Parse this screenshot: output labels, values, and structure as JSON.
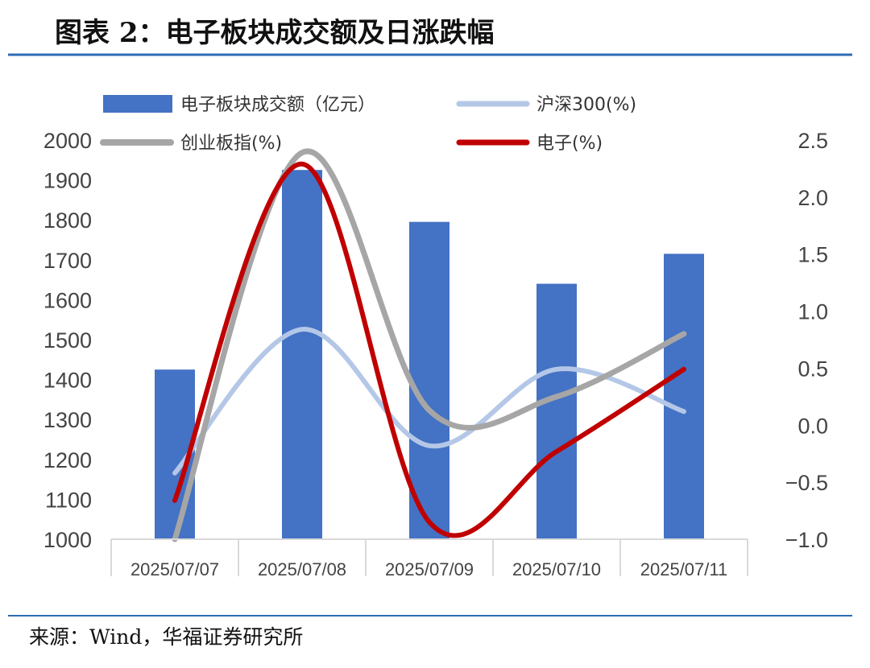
{
  "header": {
    "title": "图表 2：电子板块成交额及日涨跌幅"
  },
  "footer": {
    "source": "来源：Wind，华福证券研究所"
  },
  "colors": {
    "rule": "#2e6cb5",
    "bar": "#4472c4",
    "hs300": "#b4c7e7",
    "chinext": "#a6a6a6",
    "electronics": "#c00000",
    "axis": "#d9d9d9"
  },
  "chart_data": {
    "type": "bar",
    "categories": [
      "2025/07/07",
      "2025/07/08",
      "2025/07/09",
      "2025/07/10",
      "2025/07/11"
    ],
    "y_left": {
      "ylim": [
        1000,
        2000
      ],
      "ticks": [
        "1000",
        "1100",
        "1200",
        "1300",
        "1400",
        "1500",
        "1600",
        "1700",
        "1800",
        "1900",
        "2000"
      ]
    },
    "y_right": {
      "ylim": [
        -1.0,
        2.5
      ],
      "ticks": [
        "−1.0",
        "−0.5",
        "0.0",
        "0.5",
        "1.0",
        "1.5",
        "2.0",
        "2.5"
      ]
    },
    "legend_placement": "top",
    "grid": false,
    "series": [
      {
        "name": "电子板块成交额（亿元）",
        "type": "bar",
        "axis": "left",
        "values": [
          1425,
          1925,
          1795,
          1640,
          1715
        ],
        "color": "#4472c4"
      },
      {
        "name": "沪深300(%)",
        "type": "line",
        "axis": "right",
        "values": [
          -0.42,
          0.84,
          -0.18,
          0.49,
          0.12
        ],
        "color": "#b4c7e7"
      },
      {
        "name": "创业板指(%)",
        "type": "line",
        "axis": "right",
        "values": [
          -1.0,
          2.39,
          0.13,
          0.25,
          0.8
        ],
        "color": "#a6a6a6"
      },
      {
        "name": "电子(%)",
        "type": "line",
        "axis": "right",
        "values": [
          -0.66,
          2.29,
          -0.85,
          -0.23,
          0.49
        ],
        "color": "#c00000"
      }
    ]
  }
}
